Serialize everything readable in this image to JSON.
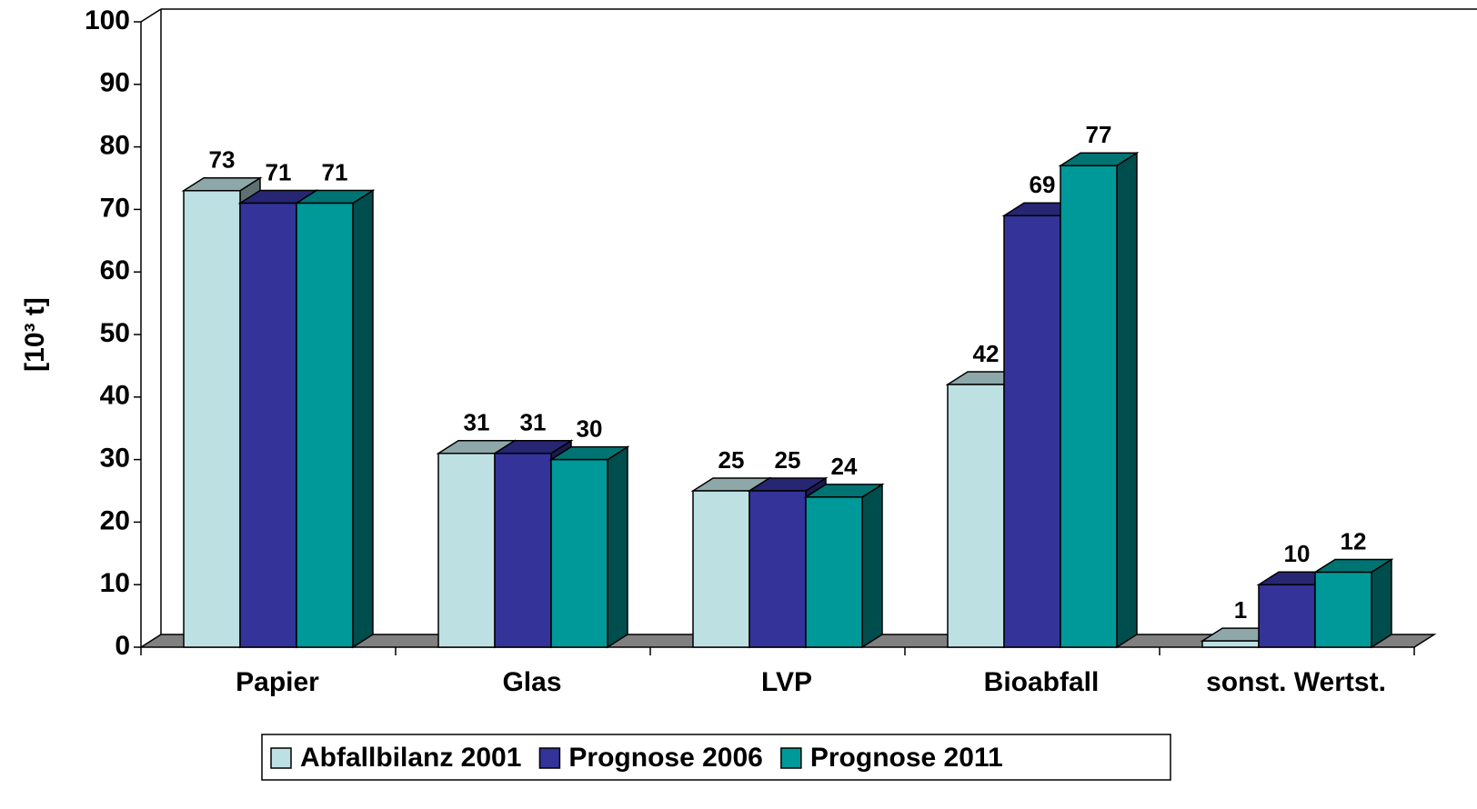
{
  "chart_data": {
    "type": "bar3d",
    "y_label": "[10³ t]",
    "categories": [
      "Papier",
      "Glas",
      "LVP",
      "Bioabfall",
      "sonst. Wertst."
    ],
    "series": [
      {
        "name": "Abfallbilanz 2001",
        "color": "#bde0e3",
        "values": [
          73,
          31,
          25,
          42,
          1
        ]
      },
      {
        "name": "Prognose 2006",
        "color": "#333399",
        "values": [
          71,
          31,
          25,
          69,
          10
        ]
      },
      {
        "name": "Prognose 2011",
        "color": "#009999",
        "values": [
          71,
          30,
          24,
          77,
          12
        ]
      }
    ],
    "ylim": [
      0,
      100
    ],
    "yticks": [
      0,
      10,
      20,
      30,
      40,
      50,
      60,
      70,
      80,
      90,
      100
    ]
  }
}
